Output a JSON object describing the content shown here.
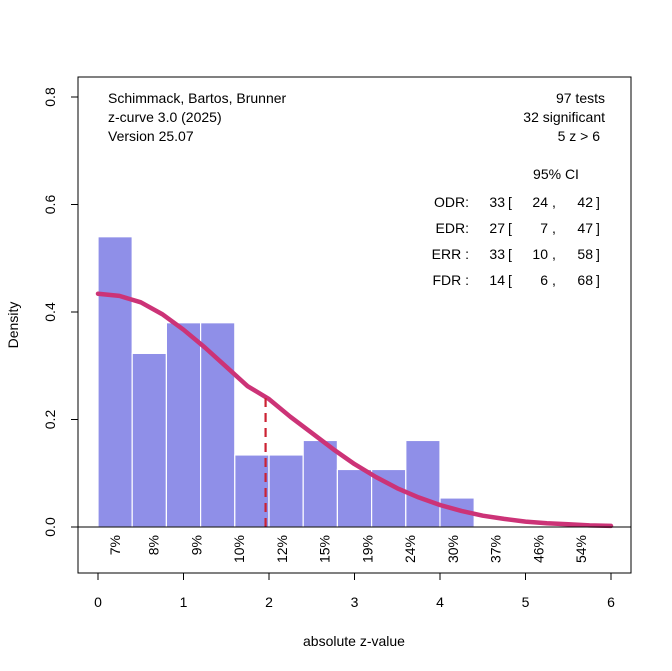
{
  "chart_data": {
    "type": "bar",
    "title": "",
    "xlabel": "absolute z-value",
    "ylabel": "Density",
    "xlim": [
      -0.2,
      6.3
    ],
    "ylim": [
      -0.09,
      0.86
    ],
    "x_ticks": [
      0,
      1,
      2,
      3,
      4,
      5,
      6
    ],
    "x_tick_labels": [
      "0",
      "1",
      "2",
      "3",
      "4",
      "5",
      "6"
    ],
    "y_ticks": [
      0.0,
      0.2,
      0.4,
      0.6,
      0.8
    ],
    "y_tick_labels": [
      "0.0",
      "0.2",
      "0.4",
      "0.6",
      "0.8"
    ],
    "histogram": {
      "bin_width": 0.4,
      "bin_starts": [
        0,
        0.4,
        0.8,
        1.2,
        1.6,
        2.0,
        2.4,
        2.8,
        3.2,
        3.6,
        4.0
      ],
      "values": [
        0.54,
        0.323,
        0.38,
        0.38,
        0.134,
        0.134,
        0.161,
        0.107,
        0.107,
        0.161,
        0.054
      ],
      "color": "#8f8fe8"
    },
    "curve": {
      "name": "z-curve fit",
      "color": "#cc3377",
      "x": [
        0,
        0.25,
        0.5,
        0.75,
        1.0,
        1.25,
        1.5,
        1.75,
        2.0,
        2.25,
        2.5,
        2.75,
        3.0,
        3.25,
        3.5,
        3.75,
        4.0,
        4.25,
        4.5,
        4.75,
        5.0,
        5.25,
        5.5,
        5.75,
        6.0
      ],
      "y": [
        0.434,
        0.43,
        0.418,
        0.396,
        0.367,
        0.334,
        0.298,
        0.262,
        0.238,
        0.205,
        0.175,
        0.145,
        0.117,
        0.093,
        0.072,
        0.055,
        0.041,
        0.03,
        0.021,
        0.015,
        0.01,
        0.007,
        0.005,
        0.003,
        0.002
      ]
    },
    "critical_line": {
      "x": 1.96,
      "y_top": 0.25,
      "color": "#cc2233",
      "style": "dashed"
    },
    "power_labels": {
      "x": [
        0.2,
        0.65,
        1.15,
        1.65,
        2.15,
        2.65,
        3.15,
        3.65,
        4.15,
        4.65,
        5.15,
        5.65
      ],
      "labels": [
        "7%",
        "8%",
        "9%",
        "10%",
        "12%",
        "15%",
        "19%",
        "24%",
        "30%",
        "37%",
        "46%",
        "54%"
      ]
    },
    "annotations": {
      "top_left": [
        "Schimmack, Bartos, Brunner",
        "z-curve 3.0 (2025)",
        "Version 25.07"
      ],
      "top_right": [
        "97 tests",
        "32 significant",
        "5 z > 6"
      ],
      "ci_header": "95% CI",
      "ci_rows": [
        {
          "label": "ODR:",
          "est": "33",
          "lo": "24",
          "hi": "42"
        },
        {
          "label": "EDR:",
          "est": "27",
          "lo": "7",
          "hi": "47"
        },
        {
          "label": "ERR :",
          "est": "33",
          "lo": "10",
          "hi": "58"
        },
        {
          "label": "FDR :",
          "est": "14",
          "lo": "6",
          "hi": "68"
        }
      ]
    },
    "grid": false,
    "legend": "none"
  }
}
